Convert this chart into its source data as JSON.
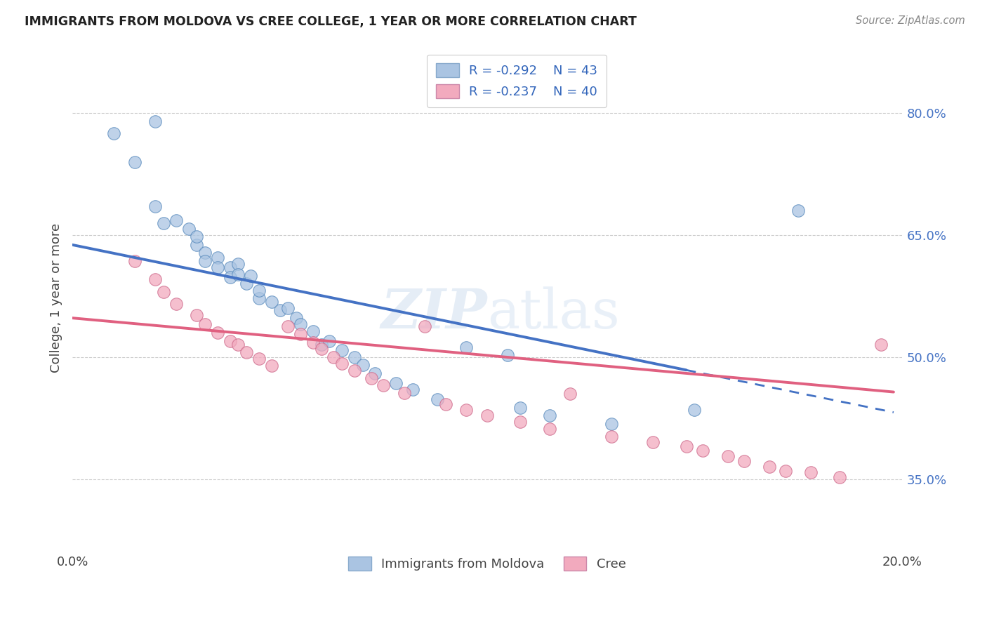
{
  "title": "IMMIGRANTS FROM MOLDOVA VS CREE COLLEGE, 1 YEAR OR MORE CORRELATION CHART",
  "source": "Source: ZipAtlas.com",
  "ylabel": "College, 1 year or more",
  "xlim": [
    0.0,
    0.2
  ],
  "ylim": [
    0.265,
    0.88
  ],
  "y_ticks_right": [
    0.35,
    0.5,
    0.65,
    0.8
  ],
  "y_tick_labels_right": [
    "35.0%",
    "50.0%",
    "65.0%",
    "80.0%"
  ],
  "legend_R1": "R = -0.292",
  "legend_N1": "N = 43",
  "legend_R2": "R = -0.237",
  "legend_N2": "N = 40",
  "color_moldova": "#aac4e2",
  "color_cree": "#f2aabe",
  "color_moldova_line": "#4472c4",
  "color_cree_line": "#e06080",
  "watermark": "ZIPatlas",
  "background_color": "#ffffff",
  "grid_color": "#cccccc",
  "blue_x": [
    0.01,
    0.015,
    0.02,
    0.02,
    0.022,
    0.025,
    0.028,
    0.03,
    0.03,
    0.032,
    0.032,
    0.035,
    0.035,
    0.038,
    0.038,
    0.04,
    0.04,
    0.042,
    0.043,
    0.045,
    0.045,
    0.048,
    0.05,
    0.052,
    0.054,
    0.055,
    0.058,
    0.06,
    0.062,
    0.065,
    0.068,
    0.07,
    0.073,
    0.078,
    0.082,
    0.088,
    0.095,
    0.105,
    0.108,
    0.115,
    0.13,
    0.15,
    0.175
  ],
  "blue_y": [
    0.775,
    0.74,
    0.79,
    0.685,
    0.665,
    0.668,
    0.658,
    0.638,
    0.648,
    0.628,
    0.618,
    0.622,
    0.61,
    0.61,
    0.598,
    0.615,
    0.602,
    0.59,
    0.6,
    0.572,
    0.582,
    0.568,
    0.558,
    0.56,
    0.548,
    0.54,
    0.532,
    0.515,
    0.52,
    0.508,
    0.5,
    0.49,
    0.48,
    0.468,
    0.46,
    0.448,
    0.512,
    0.502,
    0.438,
    0.428,
    0.418,
    0.435,
    0.68
  ],
  "pink_x": [
    0.015,
    0.02,
    0.022,
    0.025,
    0.03,
    0.032,
    0.035,
    0.038,
    0.04,
    0.042,
    0.045,
    0.048,
    0.052,
    0.055,
    0.058,
    0.06,
    0.063,
    0.065,
    0.068,
    0.072,
    0.075,
    0.08,
    0.085,
    0.09,
    0.095,
    0.1,
    0.108,
    0.115,
    0.12,
    0.13,
    0.14,
    0.148,
    0.152,
    0.158,
    0.162,
    0.168,
    0.172,
    0.178,
    0.185,
    0.195
  ],
  "pink_y": [
    0.618,
    0.596,
    0.58,
    0.565,
    0.552,
    0.54,
    0.53,
    0.52,
    0.515,
    0.506,
    0.498,
    0.489,
    0.538,
    0.528,
    0.518,
    0.51,
    0.5,
    0.492,
    0.483,
    0.474,
    0.465,
    0.456,
    0.538,
    0.442,
    0.435,
    0.428,
    0.42,
    0.412,
    0.455,
    0.402,
    0.395,
    0.39,
    0.385,
    0.378,
    0.372,
    0.365,
    0.36,
    0.358,
    0.352,
    0.515
  ]
}
